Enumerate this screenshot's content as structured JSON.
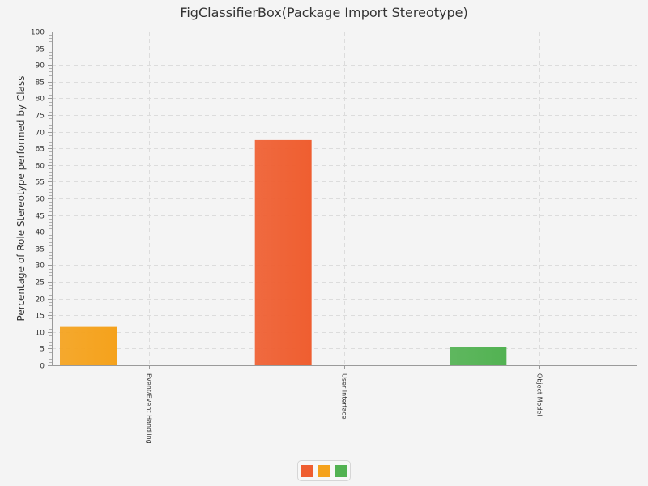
{
  "chart_data": {
    "type": "bar",
    "title": "FigClassifierBox(Package Import Stereotype)",
    "ylabel": "Percentage of Role Stereotype performed by Class",
    "xlabel": "",
    "ylim": [
      0,
      100
    ],
    "ytick_step": 5,
    "grid": true,
    "categories": [
      "Event/Event Handling",
      "User Interface",
      "Object Model"
    ],
    "series": [
      {
        "color": "#f5a21c",
        "values": [
          11.5,
          null,
          null
        ]
      },
      {
        "color": "#ef5e30",
        "values": [
          null,
          67.5,
          null
        ]
      },
      {
        "color": "#52b252",
        "values": [
          null,
          null,
          5.5
        ]
      }
    ],
    "legend": {
      "placement": "bottom-center",
      "swatches": [
        "#ef5e30",
        "#f5a21c",
        "#52b252"
      ]
    }
  }
}
